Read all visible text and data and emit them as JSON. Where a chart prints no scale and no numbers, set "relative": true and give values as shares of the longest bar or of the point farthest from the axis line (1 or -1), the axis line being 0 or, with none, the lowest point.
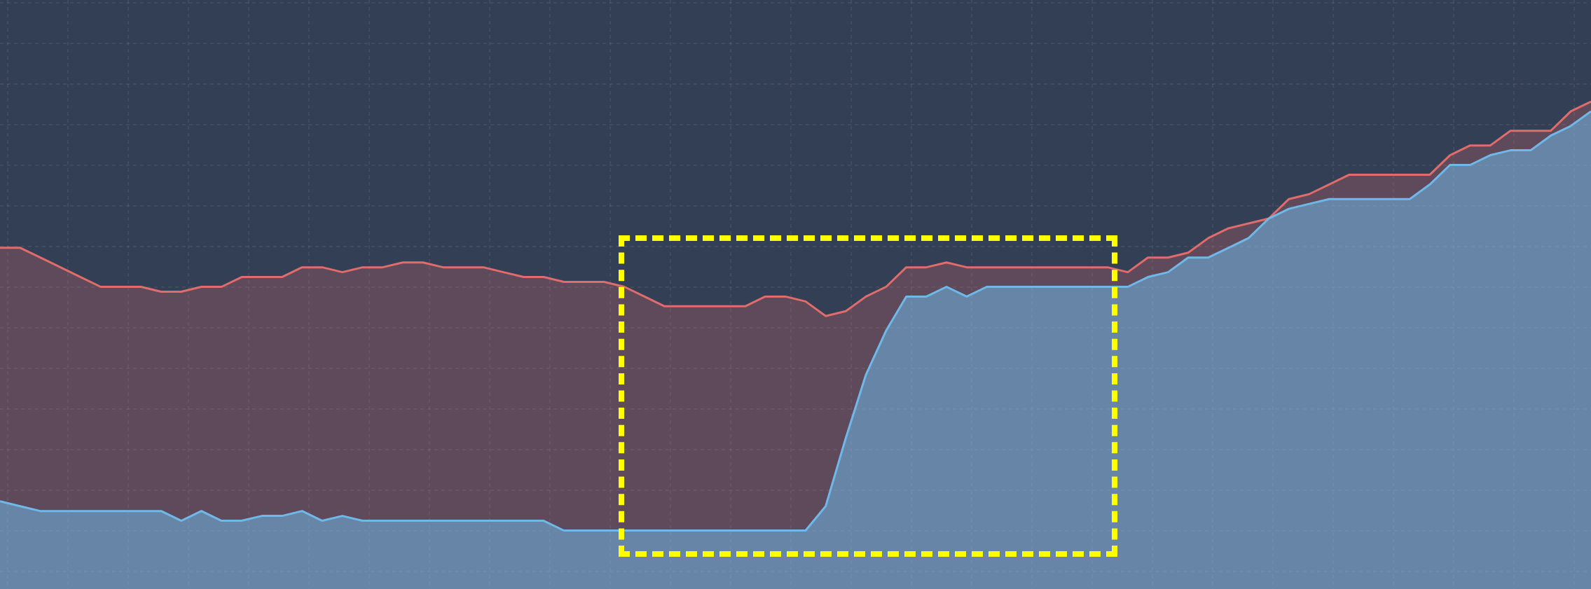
{
  "chart_data": {
    "type": "area",
    "relative": true,
    "grid": true,
    "legend": false,
    "categories": [
      null,
      null,
      null,
      null,
      null,
      null,
      null,
      null,
      null,
      null,
      null,
      null,
      null,
      null,
      null,
      null,
      null,
      null,
      null,
      null,
      null,
      null,
      null,
      null,
      null,
      null,
      null,
      null,
      null,
      null,
      null,
      null,
      null,
      null,
      null,
      null,
      null,
      null,
      null,
      null,
      null,
      null,
      null,
      null,
      null,
      null,
      null,
      null,
      null,
      null,
      null,
      null,
      null,
      null,
      null,
      null,
      null,
      null,
      null,
      null,
      null,
      null,
      null,
      null,
      null,
      null,
      null,
      null,
      null,
      null,
      null,
      null,
      null,
      null,
      null,
      null,
      null,
      null,
      null,
      null
    ],
    "series": [
      {
        "color": "#e06c6c",
        "values": [
          0.7,
          0.7,
          0.68,
          0.66,
          0.64,
          0.62,
          0.62,
          0.62,
          0.61,
          0.61,
          0.62,
          0.62,
          0.64,
          0.64,
          0.64,
          0.66,
          0.66,
          0.65,
          0.66,
          0.66,
          0.67,
          0.67,
          0.66,
          0.66,
          0.66,
          0.65,
          0.64,
          0.64,
          0.63,
          0.63,
          0.63,
          0.62,
          0.6,
          0.58,
          0.58,
          0.58,
          0.58,
          0.58,
          0.6,
          0.6,
          0.59,
          0.56,
          0.57,
          0.6,
          0.62,
          0.66,
          0.66,
          0.67,
          0.66,
          0.66,
          0.66,
          0.66,
          0.66,
          0.66,
          0.66,
          0.66,
          0.65,
          0.68,
          0.68,
          0.69,
          0.72,
          0.74,
          0.75,
          0.76,
          0.8,
          0.81,
          0.83,
          0.85,
          0.85,
          0.85,
          0.85,
          0.85,
          0.89,
          0.91,
          0.91,
          0.94,
          0.94,
          0.94,
          0.98,
          1
        ]
      },
      {
        "color": "#6fb8e8",
        "values": [
          0.18,
          0.17,
          0.16,
          0.16,
          0.16,
          0.16,
          0.16,
          0.16,
          0.16,
          0.14,
          0.16,
          0.14,
          0.14,
          0.15,
          0.15,
          0.16,
          0.14,
          0.15,
          0.14,
          0.14,
          0.14,
          0.14,
          0.14,
          0.14,
          0.14,
          0.14,
          0.14,
          0.14,
          0.12,
          0.12,
          0.12,
          0.12,
          0.12,
          0.12,
          0.12,
          0.12,
          0.12,
          0.12,
          0.12,
          0.12,
          0.12,
          0.17,
          0.31,
          0.44,
          0.53,
          0.6,
          0.6,
          0.62,
          0.6,
          0.62,
          0.62,
          0.62,
          0.62,
          0.62,
          0.62,
          0.62,
          0.62,
          0.64,
          0.65,
          0.68,
          0.68,
          0.7,
          0.72,
          0.76,
          0.78,
          0.79,
          0.8,
          0.8,
          0.8,
          0.8,
          0.8,
          0.83,
          0.87,
          0.87,
          0.89,
          0.9,
          0.9,
          0.93,
          0.95,
          0.98
        ]
      }
    ]
  }
}
